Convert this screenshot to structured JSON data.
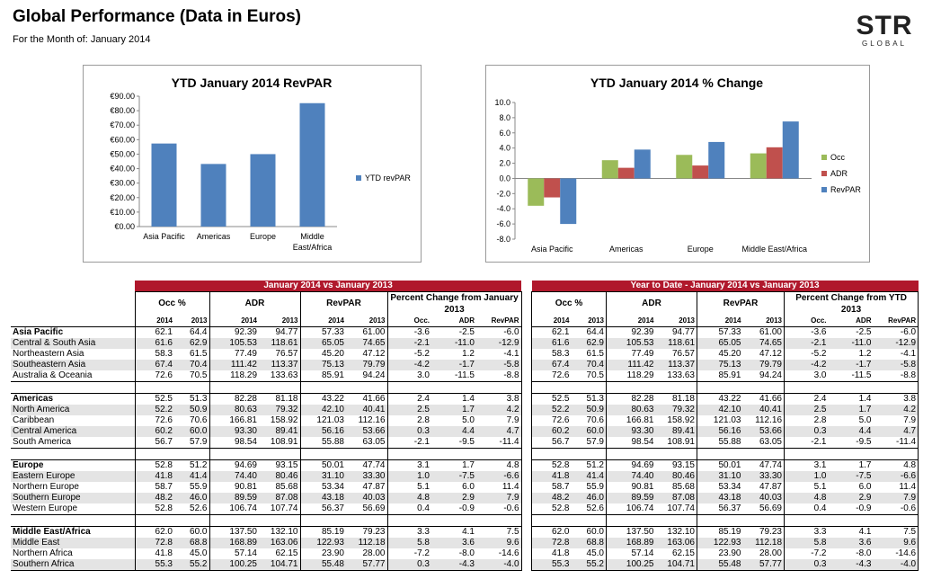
{
  "header": {
    "title": "Global Performance (Data in Euros)",
    "subtitle": "For the Month of: January 2014",
    "logo_main": "STR",
    "logo_sub": "GLOBAL"
  },
  "chart_data": [
    {
      "type": "bar",
      "title": "YTD January 2014 RevPAR",
      "categories": [
        "Asia Pacific",
        "Americas",
        "Europe",
        "Middle East/Africa"
      ],
      "series": [
        {
          "name": "YTD revPAR",
          "values": [
            57.33,
            43.22,
            50.01,
            85.19
          ],
          "color": "#4f81bd"
        }
      ],
      "yticks": [
        "€0.00",
        "€10.00",
        "€20.00",
        "€30.00",
        "€40.00",
        "€50.00",
        "€60.00",
        "€70.00",
        "€80.00",
        "€90.00"
      ],
      "ylim": [
        0,
        90
      ],
      "legend": "right",
      "grid": false
    },
    {
      "type": "bar",
      "title": "YTD January 2014 % Change",
      "categories": [
        "Asia Pacific",
        "Americas",
        "Europe",
        "Middle East/Africa"
      ],
      "series": [
        {
          "name": "Occ",
          "values": [
            -3.6,
            2.4,
            3.1,
            3.3
          ],
          "color": "#9bbb59"
        },
        {
          "name": "ADR",
          "values": [
            -2.5,
            1.4,
            1.7,
            4.1
          ],
          "color": "#c0504d"
        },
        {
          "name": "RevPAR",
          "values": [
            -6.0,
            3.8,
            4.8,
            7.5
          ],
          "color": "#4f81bd"
        }
      ],
      "yticks": [
        "-8.0",
        "-6.0",
        "-4.0",
        "-2.0",
        "0.0",
        "2.0",
        "4.0",
        "6.0",
        "8.0",
        "10.0"
      ],
      "ylim": [
        -8,
        10
      ],
      "legend": "right",
      "grid": false
    }
  ],
  "tables": {
    "left": {
      "banner": "January 2014 vs January 2013",
      "groups": [
        "Occ %",
        "ADR",
        "RevPAR",
        "Percent Change from January 2013"
      ],
      "years": [
        "2014",
        "2013",
        "2014",
        "2013",
        "2014",
        "2013"
      ],
      "pct_cols": [
        "Occ.",
        "ADR",
        "RevPAR"
      ]
    },
    "right": {
      "banner": "Year to Date - January 2014 vs January 2013",
      "groups": [
        "Occ %",
        "ADR",
        "RevPAR",
        "Percent Change from YTD 2013"
      ],
      "years": [
        "2014",
        "2013",
        "2014",
        "2013",
        "2014",
        "2013"
      ],
      "pct_cols": [
        "Occ.",
        "ADR",
        "RevPAR"
      ]
    },
    "sections": [
      {
        "rows": [
          {
            "name": "Asia Pacific",
            "bold": true,
            "vals": [
              "62.1",
              "64.4",
              "92.39",
              "94.77",
              "57.33",
              "61.00",
              "-3.6",
              "-2.5",
              "-6.0"
            ]
          },
          {
            "name": "Central & South Asia",
            "vals": [
              "61.6",
              "62.9",
              "105.53",
              "118.61",
              "65.05",
              "74.65",
              "-2.1",
              "-11.0",
              "-12.9"
            ]
          },
          {
            "name": "Northeastern Asia",
            "vals": [
              "58.3",
              "61.5",
              "77.49",
              "76.57",
              "45.20",
              "47.12",
              "-5.2",
              "1.2",
              "-4.1"
            ]
          },
          {
            "name": "Southeastern Asia",
            "vals": [
              "67.4",
              "70.4",
              "111.42",
              "113.37",
              "75.13",
              "79.79",
              "-4.2",
              "-1.7",
              "-5.8"
            ]
          },
          {
            "name": "Australia & Oceania",
            "vals": [
              "72.6",
              "70.5",
              "118.29",
              "133.63",
              "85.91",
              "94.24",
              "3.0",
              "-11.5",
              "-8.8"
            ]
          }
        ]
      },
      {
        "rows": [
          {
            "name": "Americas",
            "bold": true,
            "vals": [
              "52.5",
              "51.3",
              "82.28",
              "81.18",
              "43.22",
              "41.66",
              "2.4",
              "1.4",
              "3.8"
            ]
          },
          {
            "name": "North America",
            "vals": [
              "52.2",
              "50.9",
              "80.63",
              "79.32",
              "42.10",
              "40.41",
              "2.5",
              "1.7",
              "4.2"
            ]
          },
          {
            "name": "Caribbean",
            "vals": [
              "72.6",
              "70.6",
              "166.81",
              "158.92",
              "121.03",
              "112.16",
              "2.8",
              "5.0",
              "7.9"
            ]
          },
          {
            "name": "Central America",
            "vals": [
              "60.2",
              "60.0",
              "93.30",
              "89.41",
              "56.16",
              "53.66",
              "0.3",
              "4.4",
              "4.7"
            ]
          },
          {
            "name": "South America",
            "vals": [
              "56.7",
              "57.9",
              "98.54",
              "108.91",
              "55.88",
              "63.05",
              "-2.1",
              "-9.5",
              "-11.4"
            ]
          }
        ]
      },
      {
        "rows": [
          {
            "name": "Europe",
            "bold": true,
            "vals": [
              "52.8",
              "51.2",
              "94.69",
              "93.15",
              "50.01",
              "47.74",
              "3.1",
              "1.7",
              "4.8"
            ]
          },
          {
            "name": "Eastern Europe",
            "vals": [
              "41.8",
              "41.4",
              "74.40",
              "80.46",
              "31.10",
              "33.30",
              "1.0",
              "-7.5",
              "-6.6"
            ]
          },
          {
            "name": "Northern Europe",
            "vals": [
              "58.7",
              "55.9",
              "90.81",
              "85.68",
              "53.34",
              "47.87",
              "5.1",
              "6.0",
              "11.4"
            ]
          },
          {
            "name": "Southern Europe",
            "vals": [
              "48.2",
              "46.0",
              "89.59",
              "87.08",
              "43.18",
              "40.03",
              "4.8",
              "2.9",
              "7.9"
            ]
          },
          {
            "name": "Western Europe",
            "vals": [
              "52.8",
              "52.6",
              "106.74",
              "107.74",
              "56.37",
              "56.69",
              "0.4",
              "-0.9",
              "-0.6"
            ]
          }
        ]
      },
      {
        "rows": [
          {
            "name": "Middle East/Africa",
            "bold": true,
            "vals": [
              "62.0",
              "60.0",
              "137.50",
              "132.10",
              "85.19",
              "79.23",
              "3.3",
              "4.1",
              "7.5"
            ]
          },
          {
            "name": "Middle East",
            "vals": [
              "72.8",
              "68.8",
              "168.89",
              "163.06",
              "122.93",
              "112.18",
              "5.8",
              "3.6",
              "9.6"
            ]
          },
          {
            "name": "Northern Africa",
            "vals": [
              "41.8",
              "45.0",
              "57.14",
              "62.15",
              "23.90",
              "28.00",
              "-7.2",
              "-8.0",
              "-14.6"
            ]
          },
          {
            "name": "Southern Africa",
            "vals": [
              "55.3",
              "55.2",
              "100.25",
              "104.71",
              "55.48",
              "57.77",
              "0.3",
              "-4.3",
              "-4.0"
            ]
          }
        ]
      }
    ],
    "ytd_sections": [
      [
        "62.1",
        "64.4",
        "92.39",
        "94.77",
        "57.33",
        "61.00",
        "-3.6",
        "-2.5",
        "-6.0"
      ],
      [
        "61.6",
        "62.9",
        "105.53",
        "118.61",
        "65.05",
        "74.65",
        "-2.1",
        "-11.0",
        "-12.9"
      ],
      [
        "58.3",
        "61.5",
        "77.49",
        "76.57",
        "45.20",
        "47.12",
        "-5.2",
        "1.2",
        "-4.1"
      ],
      [
        "67.4",
        "70.4",
        "111.42",
        "113.37",
        "75.13",
        "79.79",
        "-4.2",
        "-1.7",
        "-5.8"
      ],
      [
        "72.6",
        "70.5",
        "118.29",
        "133.63",
        "85.91",
        "94.24",
        "3.0",
        "-11.5",
        "-8.8"
      ],
      [
        "52.5",
        "51.3",
        "82.28",
        "81.18",
        "43.22",
        "41.66",
        "2.4",
        "1.4",
        "3.8"
      ],
      [
        "52.2",
        "50.9",
        "80.63",
        "79.32",
        "42.10",
        "40.41",
        "2.5",
        "1.7",
        "4.2"
      ],
      [
        "72.6",
        "70.6",
        "166.81",
        "158.92",
        "121.03",
        "112.16",
        "2.8",
        "5.0",
        "7.9"
      ],
      [
        "60.2",
        "60.0",
        "93.30",
        "89.41",
        "56.16",
        "53.66",
        "0.3",
        "4.4",
        "4.7"
      ],
      [
        "56.7",
        "57.9",
        "98.54",
        "108.91",
        "55.88",
        "63.05",
        "-2.1",
        "-9.5",
        "-11.4"
      ],
      [
        "52.8",
        "51.2",
        "94.69",
        "93.15",
        "50.01",
        "47.74",
        "3.1",
        "1.7",
        "4.8"
      ],
      [
        "41.8",
        "41.4",
        "74.40",
        "80.46",
        "31.10",
        "33.30",
        "1.0",
        "-7.5",
        "-6.6"
      ],
      [
        "58.7",
        "55.9",
        "90.81",
        "85.68",
        "53.34",
        "47.87",
        "5.1",
        "6.0",
        "11.4"
      ],
      [
        "48.2",
        "46.0",
        "89.59",
        "87.08",
        "43.18",
        "40.03",
        "4.8",
        "2.9",
        "7.9"
      ],
      [
        "52.8",
        "52.6",
        "106.74",
        "107.74",
        "56.37",
        "56.69",
        "0.4",
        "-0.9",
        "-0.6"
      ],
      [
        "62.0",
        "60.0",
        "137.50",
        "132.10",
        "85.19",
        "79.23",
        "3.3",
        "4.1",
        "7.5"
      ],
      [
        "72.8",
        "68.8",
        "168.89",
        "163.06",
        "122.93",
        "112.18",
        "5.8",
        "3.6",
        "9.6"
      ],
      [
        "41.8",
        "45.0",
        "57.14",
        "62.15",
        "23.90",
        "28.00",
        "-7.2",
        "-8.0",
        "-14.6"
      ],
      [
        "55.3",
        "55.2",
        "100.25",
        "104.71",
        "55.48",
        "57.77",
        "0.3",
        "-4.3",
        "-4.0"
      ]
    ]
  }
}
